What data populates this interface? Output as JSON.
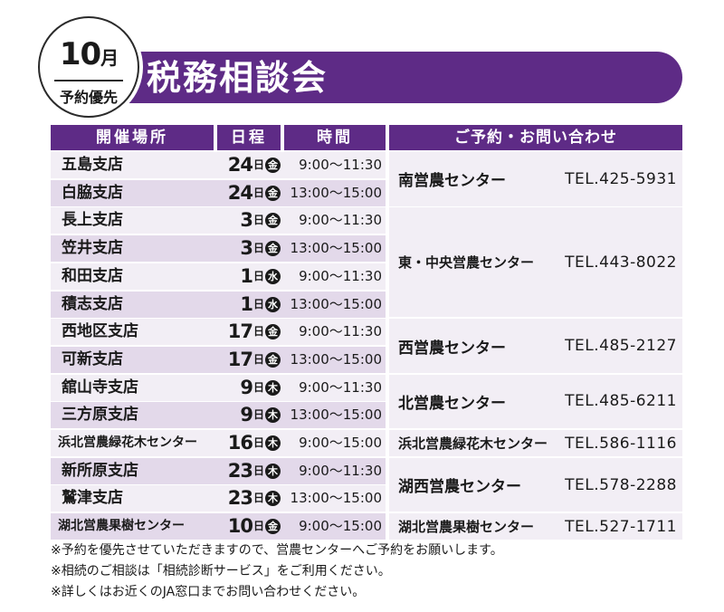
{
  "header": {
    "month_number": "10",
    "month_suffix": "月",
    "badge_sub": "予約優先",
    "title": "税務相談会"
  },
  "table": {
    "headers": {
      "place": "開催場所",
      "date": "日程",
      "time": "時間",
      "contact": "ご予約・お問い合わせ"
    },
    "day_suffix": "日",
    "rows": [
      {
        "place": "五島支店",
        "day": "24",
        "weekday": "金",
        "time": "9:00〜11:30"
      },
      {
        "place": "白脇支店",
        "day": "24",
        "weekday": "金",
        "time": "13:00〜15:00"
      },
      {
        "place": "長上支店",
        "day": "3",
        "weekday": "金",
        "time": "9:00〜11:30"
      },
      {
        "place": "笠井支店",
        "day": "3",
        "weekday": "金",
        "time": "13:00〜15:00"
      },
      {
        "place": "和田支店",
        "day": "1",
        "weekday": "水",
        "time": "9:00〜11:30"
      },
      {
        "place": "積志支店",
        "day": "1",
        "weekday": "水",
        "time": "13:00〜15:00"
      },
      {
        "place": "西地区支店",
        "day": "17",
        "weekday": "金",
        "time": "9:00〜11:30"
      },
      {
        "place": "可新支店",
        "day": "17",
        "weekday": "金",
        "time": "13:00〜15:00"
      },
      {
        "place": "舘山寺支店",
        "day": "9",
        "weekday": "木",
        "time": "9:00〜11:30"
      },
      {
        "place": "三方原支店",
        "day": "9",
        "weekday": "木",
        "time": "13:00〜15:00"
      },
      {
        "place": "浜北営農緑花木センター",
        "day": "16",
        "weekday": "木",
        "time": "9:00〜15:00"
      },
      {
        "place": "新所原支店",
        "day": "23",
        "weekday": "木",
        "time": "9:00〜11:30"
      },
      {
        "place": "鷲津支店",
        "day": "23",
        "weekday": "木",
        "time": "13:00〜15:00"
      },
      {
        "place": "湖北営農果樹センター",
        "day": "10",
        "weekday": "金",
        "time": "9:00〜15:00"
      }
    ],
    "contacts": [
      {
        "name": "南営農センター",
        "tel": "TEL.425-5931"
      },
      {
        "name": "東・中央営農センター",
        "tel": "TEL.443-8022"
      },
      {
        "name": "西営農センター",
        "tel": "TEL.485-2127"
      },
      {
        "name": "北営農センター",
        "tel": "TEL.485-6211"
      },
      {
        "name": "浜北営農緑花木センター",
        "tel": "TEL.586-1116"
      },
      {
        "name": "湖西営農センター",
        "tel": "TEL.578-2288"
      },
      {
        "name": "湖北営農果樹センター",
        "tel": "TEL.527-1711"
      }
    ]
  },
  "notes": [
    "※予約を優先させていただきますので、営農センターへご予約をお願いします。",
    "※相続のご相談は「相続診断サービス」をご利用ください。",
    "※詳しくはお近くのJA窓口までお問い合わせください。"
  ]
}
